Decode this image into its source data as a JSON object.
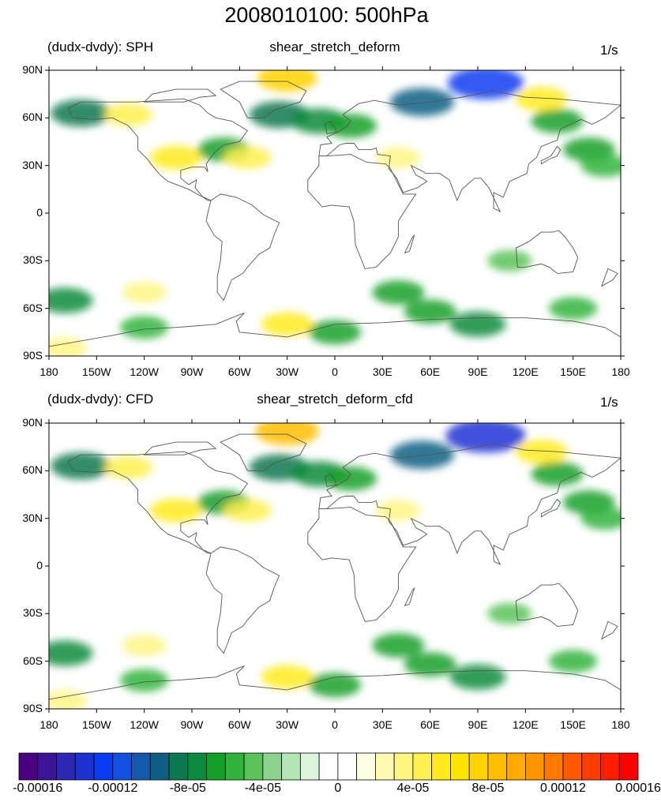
{
  "title": "2008010100: 500hPa",
  "colors": {
    "land_outline": "#555555",
    "frame": "#000000"
  },
  "panels": [
    {
      "left_label": "(dudx-dvdy): SPH",
      "center_label": "shear_stretch_deform",
      "right_label": "1/s"
    },
    {
      "left_label": "(dudx-dvdy): CFD",
      "center_label": "shear_stretch_deform_cfd",
      "right_label": "1/s"
    }
  ],
  "axes": {
    "lat_ticks": [
      "90N",
      "60N",
      "30N",
      "0",
      "30S",
      "60S",
      "90S"
    ],
    "lon_ticks": [
      "180",
      "150W",
      "120W",
      "90W",
      "60W",
      "30W",
      "0",
      "30E",
      "60E",
      "90E",
      "120E",
      "150E",
      "180"
    ]
  },
  "colorbar": {
    "labels": [
      "-0.00016",
      "-0.00012",
      "-8e-05",
      "-4e-05",
      "0",
      "4e-05",
      "8e-05",
      "0.00012",
      "0.00016"
    ],
    "colors": [
      "#4b0082",
      "#3c1496",
      "#2d28b4",
      "#1e32d2",
      "#0a3cf0",
      "#1450e0",
      "#145aaa",
      "#0f5f82",
      "#0a7850",
      "#0a8c3c",
      "#14a028",
      "#32b43c",
      "#5ac35a",
      "#8cd28c",
      "#b4e6b4",
      "#dcf5dc",
      "#ffffff",
      "#ffffff",
      "#ffffe6",
      "#fffab4",
      "#fff582",
      "#fff050",
      "#ffeb1e",
      "#ffe600",
      "#ffd200",
      "#ffbe00",
      "#ffaa00",
      "#ff9600",
      "#ff7800",
      "#ff5a00",
      "#ff3c00",
      "#ff1e00",
      "#ff0000"
    ]
  },
  "chart_data": [
    {
      "type": "heatmap",
      "title": "shear_stretch_deform",
      "subtitle": "(dudx-dvdy): SPH",
      "units": "1/s",
      "xlim": [
        -180,
        180
      ],
      "ylim": [
        -90,
        90
      ],
      "color_range": [
        -0.00016,
        0.00016
      ],
      "features": [
        {
          "lon": 95,
          "lat": 82,
          "value": -0.00012
        },
        {
          "lon": 55,
          "lat": 70,
          "value": -9e-05
        },
        {
          "lon": -30,
          "lat": 85,
          "value": 8e-05
        },
        {
          "lon": -35,
          "lat": 62,
          "value": -8e-05
        },
        {
          "lon": -10,
          "lat": 58,
          "value": -7e-05
        },
        {
          "lon": 10,
          "lat": 55,
          "value": -6e-05
        },
        {
          "lon": -160,
          "lat": 63,
          "value": -8e-05
        },
        {
          "lon": -130,
          "lat": 62,
          "value": 5e-05
        },
        {
          "lon": -100,
          "lat": 35,
          "value": 6e-05
        },
        {
          "lon": -70,
          "lat": 40,
          "value": -6e-05
        },
        {
          "lon": -55,
          "lat": 35,
          "value": 5e-05
        },
        {
          "lon": 160,
          "lat": 40,
          "value": -6e-05
        },
        {
          "lon": 140,
          "lat": 58,
          "value": -6e-05
        },
        {
          "lon": 130,
          "lat": 72,
          "value": 6e-05
        },
        {
          "lon": 40,
          "lat": 35,
          "value": 4e-05
        },
        {
          "lon": 40,
          "lat": -50,
          "value": -6e-05
        },
        {
          "lon": 60,
          "lat": -62,
          "value": -6e-05
        },
        {
          "lon": 90,
          "lat": -70,
          "value": -7e-05
        },
        {
          "lon": -170,
          "lat": -55,
          "value": -7e-05
        },
        {
          "lon": -120,
          "lat": -72,
          "value": -5e-05
        },
        {
          "lon": -30,
          "lat": -70,
          "value": 6e-05
        },
        {
          "lon": 0,
          "lat": -75,
          "value": -6e-05
        },
        {
          "lon": 150,
          "lat": -60,
          "value": -5e-05
        },
        {
          "lon": -120,
          "lat": -50,
          "value": 4e-05
        },
        {
          "lon": -170,
          "lat": -85,
          "value": 4e-05
        },
        {
          "lon": 110,
          "lat": -30,
          "value": -4e-05
        },
        {
          "lon": 170,
          "lat": 30,
          "value": -5e-05
        }
      ]
    },
    {
      "type": "heatmap",
      "title": "shear_stretch_deform_cfd",
      "subtitle": "(dudx-dvdy): CFD",
      "units": "1/s",
      "xlim": [
        -180,
        180
      ],
      "ylim": [
        -90,
        90
      ],
      "color_range": [
        -0.00016,
        0.00016
      ],
      "features": [
        {
          "lon": 95,
          "lat": 82,
          "value": -0.00013
        },
        {
          "lon": 55,
          "lat": 70,
          "value": -9e-05
        },
        {
          "lon": -30,
          "lat": 85,
          "value": 9e-05
        },
        {
          "lon": -35,
          "lat": 62,
          "value": -8e-05
        },
        {
          "lon": -10,
          "lat": 58,
          "value": -7e-05
        },
        {
          "lon": 10,
          "lat": 55,
          "value": -6e-05
        },
        {
          "lon": -160,
          "lat": 63,
          "value": -8e-05
        },
        {
          "lon": -130,
          "lat": 62,
          "value": 5e-05
        },
        {
          "lon": -100,
          "lat": 35,
          "value": 6e-05
        },
        {
          "lon": -70,
          "lat": 40,
          "value": -6e-05
        },
        {
          "lon": -55,
          "lat": 35,
          "value": 5e-05
        },
        {
          "lon": 160,
          "lat": 40,
          "value": -6e-05
        },
        {
          "lon": 140,
          "lat": 58,
          "value": -6e-05
        },
        {
          "lon": 130,
          "lat": 72,
          "value": 6e-05
        },
        {
          "lon": 40,
          "lat": 35,
          "value": 4e-05
        },
        {
          "lon": 40,
          "lat": -50,
          "value": -6e-05
        },
        {
          "lon": 60,
          "lat": -62,
          "value": -6e-05
        },
        {
          "lon": 90,
          "lat": -70,
          "value": -7e-05
        },
        {
          "lon": -170,
          "lat": -55,
          "value": -7e-05
        },
        {
          "lon": -120,
          "lat": -72,
          "value": -5e-05
        },
        {
          "lon": -30,
          "lat": -70,
          "value": 6e-05
        },
        {
          "lon": 0,
          "lat": -75,
          "value": -6e-05
        },
        {
          "lon": 150,
          "lat": -60,
          "value": -5e-05
        },
        {
          "lon": -120,
          "lat": -50,
          "value": 4e-05
        },
        {
          "lon": -170,
          "lat": -85,
          "value": 4e-05
        },
        {
          "lon": 110,
          "lat": -30,
          "value": -4e-05
        },
        {
          "lon": 170,
          "lat": 30,
          "value": -5e-05
        }
      ]
    }
  ]
}
